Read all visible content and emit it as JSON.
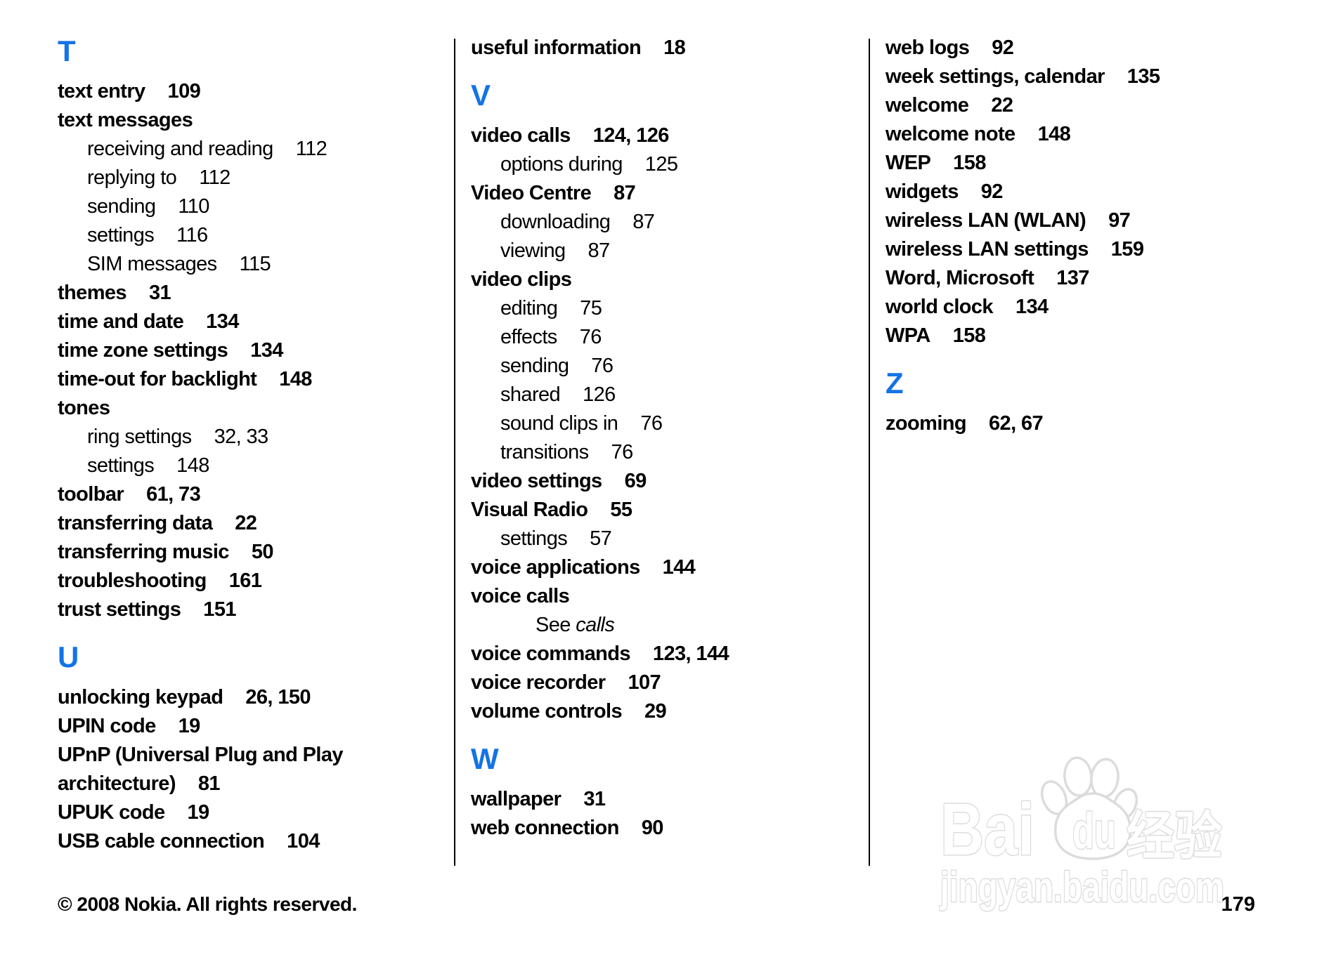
{
  "page": {
    "background_color": "#ffffff",
    "text_color": "#000000",
    "heading_accent_color": "#1473e6",
    "footer": {
      "copyright": "© 2008 Nokia. All rights reserved.",
      "page_number": "179"
    }
  },
  "watermark": {
    "brand_latin_1": "Bai",
    "brand_latin_2": "du",
    "brand_cjk": "经验",
    "site_url": "jingyan.baidu.com",
    "color": "#dcdcdc"
  },
  "index": {
    "columns": [
      {
        "items": [
          {
            "type": "letter",
            "text": "T"
          },
          {
            "type": "entry",
            "text": "text entry",
            "pages": "109"
          },
          {
            "type": "entry",
            "text": "text messages",
            "pages": ""
          },
          {
            "type": "sub",
            "text": "receiving and reading",
            "pages": "112"
          },
          {
            "type": "sub",
            "text": "replying to",
            "pages": "112"
          },
          {
            "type": "sub",
            "text": "sending",
            "pages": "110"
          },
          {
            "type": "sub",
            "text": "settings",
            "pages": "116"
          },
          {
            "type": "sub",
            "text": "SIM messages",
            "pages": "115"
          },
          {
            "type": "entry",
            "text": "themes",
            "pages": "31"
          },
          {
            "type": "entry",
            "text": "time and date",
            "pages": "134"
          },
          {
            "type": "entry",
            "text": "time zone settings",
            "pages": "134"
          },
          {
            "type": "entry",
            "text": "time-out for backlight",
            "pages": "148"
          },
          {
            "type": "entry",
            "text": "tones",
            "pages": ""
          },
          {
            "type": "sub",
            "text": "ring settings",
            "pages": "32, 33"
          },
          {
            "type": "sub",
            "text": "settings",
            "pages": "148"
          },
          {
            "type": "entry",
            "text": "toolbar",
            "pages": "61, 73"
          },
          {
            "type": "entry",
            "text": "transferring data",
            "pages": "22"
          },
          {
            "type": "entry",
            "text": "transferring music",
            "pages": "50"
          },
          {
            "type": "entry",
            "text": "troubleshooting",
            "pages": "161"
          },
          {
            "type": "entry",
            "text": "trust settings",
            "pages": "151"
          },
          {
            "type": "letter",
            "text": "U"
          },
          {
            "type": "entry",
            "text": "unlocking keypad",
            "pages": "26, 150"
          },
          {
            "type": "entry",
            "text": "UPIN code",
            "pages": "19"
          },
          {
            "type": "entry",
            "text": "UPnP (Universal Plug and Play",
            "pages": ""
          },
          {
            "type": "entry",
            "text": "architecture)",
            "pages": "81"
          },
          {
            "type": "entry",
            "text": "UPUK code",
            "pages": "19"
          },
          {
            "type": "entry",
            "text": "USB cable connection",
            "pages": "104"
          }
        ]
      },
      {
        "items": [
          {
            "type": "entry",
            "text": "useful information",
            "pages": "18"
          },
          {
            "type": "letter",
            "text": "V"
          },
          {
            "type": "entry",
            "text": "video calls",
            "pages": "124, 126"
          },
          {
            "type": "sub",
            "text": "options during",
            "pages": "125"
          },
          {
            "type": "entry",
            "text": "Video Centre",
            "pages": "87"
          },
          {
            "type": "sub",
            "text": "downloading",
            "pages": "87"
          },
          {
            "type": "sub",
            "text": "viewing",
            "pages": "87"
          },
          {
            "type": "entry",
            "text": "video clips",
            "pages": ""
          },
          {
            "type": "sub",
            "text": "editing",
            "pages": "75"
          },
          {
            "type": "sub",
            "text": "effects",
            "pages": "76"
          },
          {
            "type": "sub",
            "text": "sending",
            "pages": "76"
          },
          {
            "type": "sub",
            "text": "shared",
            "pages": "126"
          },
          {
            "type": "sub",
            "text": "sound clips in",
            "pages": "76"
          },
          {
            "type": "sub",
            "text": "transitions",
            "pages": "76"
          },
          {
            "type": "entry",
            "text": "video settings",
            "pages": "69"
          },
          {
            "type": "entry",
            "text": "Visual Radio",
            "pages": "55"
          },
          {
            "type": "sub",
            "text": "settings",
            "pages": "57"
          },
          {
            "type": "entry",
            "text": "voice applications",
            "pages": "144"
          },
          {
            "type": "entry",
            "text": "voice calls",
            "pages": ""
          },
          {
            "type": "see",
            "prefix": "See",
            "ref": "calls"
          },
          {
            "type": "entry",
            "text": "voice commands",
            "pages": "123, 144"
          },
          {
            "type": "entry",
            "text": "voice recorder",
            "pages": "107"
          },
          {
            "type": "entry",
            "text": "volume controls",
            "pages": "29"
          },
          {
            "type": "letter",
            "text": "W"
          },
          {
            "type": "entry",
            "text": "wallpaper",
            "pages": "31"
          },
          {
            "type": "entry",
            "text": "web connection",
            "pages": "90"
          }
        ]
      },
      {
        "items": [
          {
            "type": "entry",
            "text": "web logs",
            "pages": "92"
          },
          {
            "type": "entry",
            "text": "week settings, calendar",
            "pages": "135"
          },
          {
            "type": "entry",
            "text": "welcome",
            "pages": "22"
          },
          {
            "type": "entry",
            "text": "welcome note",
            "pages": "148"
          },
          {
            "type": "entry",
            "text": "WEP",
            "pages": "158"
          },
          {
            "type": "entry",
            "text": "widgets",
            "pages": "92"
          },
          {
            "type": "entry",
            "text": "wireless LAN (WLAN)",
            "pages": "97"
          },
          {
            "type": "entry",
            "text": "wireless LAN settings",
            "pages": "159"
          },
          {
            "type": "entry",
            "text": "Word, Microsoft",
            "pages": "137"
          },
          {
            "type": "entry",
            "text": "world clock",
            "pages": "134"
          },
          {
            "type": "entry",
            "text": "WPA",
            "pages": "158"
          },
          {
            "type": "letter",
            "text": "Z"
          },
          {
            "type": "entry",
            "text": "zooming",
            "pages": "62, 67"
          }
        ]
      }
    ]
  }
}
